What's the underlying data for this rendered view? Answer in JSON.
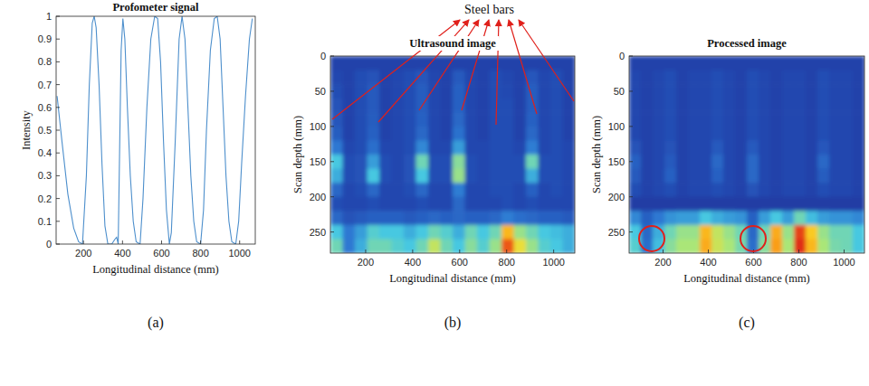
{
  "chart_data": [
    {
      "type": "line",
      "panel": "(a)",
      "title": "Profometer signal",
      "xlabel": "Longitudinal distance (mm)",
      "ylabel": "Intensity",
      "color": "#4d8fcc",
      "x": [
        65,
        90,
        120,
        150,
        175,
        195,
        215,
        230,
        245,
        255,
        265,
        280,
        295,
        310,
        325,
        345,
        360,
        370,
        378,
        385,
        393,
        402,
        412,
        425,
        440,
        455,
        470,
        490,
        505,
        525,
        545,
        565,
        580,
        595,
        610,
        625,
        640,
        650,
        670,
        690,
        705,
        720,
        735,
        750,
        765,
        780,
        800,
        815,
        830,
        850,
        870,
        885,
        900,
        915,
        930,
        945,
        960,
        980,
        995,
        1010,
        1030,
        1050,
        1065
      ],
      "values": [
        0.65,
        0.45,
        0.22,
        0.07,
        0.01,
        0,
        0.3,
        0.7,
        0.97,
        1,
        0.95,
        0.7,
        0.35,
        0.08,
        0,
        0,
        0.02,
        0.03,
        0,
        0.4,
        0.85,
        0.99,
        0.9,
        0.6,
        0.3,
        0.1,
        0.01,
        0,
        0.2,
        0.6,
        0.9,
        1,
        0.99,
        0.8,
        0.45,
        0.15,
        0,
        0.05,
        0.45,
        0.9,
        1,
        0.9,
        0.6,
        0.3,
        0.1,
        0.01,
        0,
        0.15,
        0.5,
        0.85,
        0.99,
        1,
        0.9,
        0.6,
        0.3,
        0.1,
        0.01,
        0,
        0.1,
        0.35,
        0.65,
        0.9,
        0.99
      ],
      "xlim": [
        60,
        1080
      ],
      "ylim": [
        0,
        1
      ],
      "xticks": [
        200,
        400,
        600,
        800,
        1000
      ],
      "yticks": [
        0,
        0.1,
        0.2,
        0.3,
        0.4,
        0.5,
        0.6,
        0.7,
        0.8,
        0.9,
        1
      ]
    },
    {
      "type": "heatmap",
      "panel": "(b)",
      "title": "Ultrasound image",
      "annotation": "Steel bars",
      "xlabel": "Longitudinal distance (mm)",
      "ylabel": "Scan depth (mm)",
      "xlim": [
        50,
        1090
      ],
      "ylim": [
        280,
        0
      ],
      "xticks": [
        200,
        400,
        600,
        800,
        1000
      ],
      "yticks": [
        0,
        50,
        100,
        150,
        200,
        250
      ],
      "clim": [
        0,
        1
      ],
      "cells": [
        [
          0.18,
          0.18,
          0.18,
          0.18,
          0.18,
          0.18,
          0.18,
          0.18,
          0.18,
          0.18,
          0.18,
          0.18,
          0.18,
          0.18,
          0.18,
          0.18,
          0.18,
          0.18,
          0.18,
          0.18
        ],
        [
          0.2,
          0.18,
          0.22,
          0.24,
          0.18,
          0.2,
          0.22,
          0.25,
          0.2,
          0.18,
          0.26,
          0.2,
          0.18,
          0.22,
          0.2,
          0.18,
          0.25,
          0.2,
          0.22,
          0.18
        ],
        [
          0.22,
          0.18,
          0.22,
          0.26,
          0.18,
          0.2,
          0.22,
          0.27,
          0.2,
          0.18,
          0.28,
          0.2,
          0.18,
          0.22,
          0.21,
          0.18,
          0.27,
          0.2,
          0.22,
          0.18
        ],
        [
          0.24,
          0.18,
          0.22,
          0.26,
          0.18,
          0.2,
          0.22,
          0.27,
          0.2,
          0.18,
          0.28,
          0.2,
          0.18,
          0.22,
          0.22,
          0.18,
          0.27,
          0.2,
          0.22,
          0.18
        ],
        [
          0.25,
          0.18,
          0.22,
          0.27,
          0.18,
          0.2,
          0.22,
          0.28,
          0.2,
          0.18,
          0.3,
          0.2,
          0.18,
          0.22,
          0.22,
          0.18,
          0.28,
          0.2,
          0.22,
          0.18
        ],
        [
          0.27,
          0.18,
          0.22,
          0.28,
          0.18,
          0.2,
          0.22,
          0.3,
          0.2,
          0.18,
          0.33,
          0.2,
          0.18,
          0.22,
          0.22,
          0.18,
          0.3,
          0.2,
          0.22,
          0.18
        ],
        [
          0.35,
          0.2,
          0.22,
          0.32,
          0.2,
          0.2,
          0.22,
          0.38,
          0.2,
          0.2,
          0.42,
          0.2,
          0.2,
          0.22,
          0.22,
          0.2,
          0.36,
          0.2,
          0.22,
          0.2
        ],
        [
          0.5,
          0.22,
          0.24,
          0.42,
          0.22,
          0.2,
          0.24,
          0.55,
          0.22,
          0.22,
          0.58,
          0.22,
          0.2,
          0.22,
          0.22,
          0.22,
          0.55,
          0.22,
          0.22,
          0.2
        ],
        [
          0.45,
          0.22,
          0.24,
          0.5,
          0.22,
          0.2,
          0.24,
          0.5,
          0.22,
          0.22,
          0.6,
          0.22,
          0.2,
          0.22,
          0.22,
          0.22,
          0.45,
          0.22,
          0.22,
          0.2
        ],
        [
          0.3,
          0.2,
          0.22,
          0.3,
          0.2,
          0.2,
          0.22,
          0.3,
          0.2,
          0.2,
          0.36,
          0.2,
          0.2,
          0.22,
          0.22,
          0.2,
          0.28,
          0.2,
          0.22,
          0.2
        ],
        [
          0.22,
          0.2,
          0.2,
          0.22,
          0.2,
          0.2,
          0.2,
          0.22,
          0.2,
          0.2,
          0.3,
          0.2,
          0.2,
          0.2,
          0.22,
          0.2,
          0.22,
          0.2,
          0.2,
          0.2
        ],
        [
          0.3,
          0.24,
          0.26,
          0.28,
          0.28,
          0.28,
          0.26,
          0.28,
          0.3,
          0.28,
          0.3,
          0.28,
          0.28,
          0.3,
          0.36,
          0.32,
          0.3,
          0.28,
          0.28,
          0.26
        ],
        [
          0.5,
          0.35,
          0.42,
          0.52,
          0.5,
          0.5,
          0.45,
          0.5,
          0.55,
          0.52,
          0.45,
          0.55,
          0.5,
          0.55,
          0.78,
          0.6,
          0.55,
          0.5,
          0.48,
          0.45
        ],
        [
          0.55,
          0.35,
          0.45,
          0.55,
          0.55,
          0.52,
          0.5,
          0.55,
          0.65,
          0.55,
          0.5,
          0.58,
          0.52,
          0.6,
          0.92,
          0.7,
          0.6,
          0.52,
          0.5,
          0.45
        ]
      ]
    },
    {
      "type": "heatmap",
      "panel": "(c)",
      "title": "Processed image",
      "xlabel": "Longitudinal distance (mm)",
      "ylabel": "Scan depth (mm)",
      "xlim": [
        50,
        1090
      ],
      "ylim": [
        280,
        0
      ],
      "xticks": [
        200,
        400,
        600,
        800,
        1000
      ],
      "yticks": [
        0,
        50,
        100,
        150,
        200,
        250
      ],
      "clim": [
        0,
        1
      ],
      "cells": [
        [
          0.18,
          0.18,
          0.18,
          0.18,
          0.18,
          0.18,
          0.18,
          0.18,
          0.18,
          0.18,
          0.18,
          0.18,
          0.18,
          0.18,
          0.18,
          0.18,
          0.18,
          0.18,
          0.18,
          0.18
        ],
        [
          0.2,
          0.18,
          0.2,
          0.22,
          0.18,
          0.2,
          0.2,
          0.22,
          0.2,
          0.18,
          0.22,
          0.2,
          0.18,
          0.2,
          0.2,
          0.18,
          0.22,
          0.2,
          0.2,
          0.18
        ],
        [
          0.2,
          0.18,
          0.2,
          0.22,
          0.18,
          0.2,
          0.2,
          0.22,
          0.2,
          0.18,
          0.22,
          0.2,
          0.18,
          0.2,
          0.2,
          0.18,
          0.22,
          0.2,
          0.2,
          0.18
        ],
        [
          0.2,
          0.18,
          0.2,
          0.22,
          0.18,
          0.2,
          0.2,
          0.22,
          0.2,
          0.18,
          0.22,
          0.2,
          0.18,
          0.2,
          0.2,
          0.18,
          0.22,
          0.2,
          0.2,
          0.18
        ],
        [
          0.2,
          0.18,
          0.2,
          0.22,
          0.18,
          0.2,
          0.2,
          0.22,
          0.2,
          0.18,
          0.22,
          0.2,
          0.18,
          0.2,
          0.2,
          0.18,
          0.22,
          0.2,
          0.2,
          0.18
        ],
        [
          0.2,
          0.18,
          0.2,
          0.22,
          0.18,
          0.2,
          0.2,
          0.22,
          0.2,
          0.18,
          0.22,
          0.2,
          0.18,
          0.2,
          0.2,
          0.18,
          0.22,
          0.2,
          0.2,
          0.18
        ],
        [
          0.24,
          0.18,
          0.2,
          0.24,
          0.18,
          0.2,
          0.2,
          0.26,
          0.2,
          0.18,
          0.26,
          0.2,
          0.18,
          0.2,
          0.2,
          0.18,
          0.25,
          0.2,
          0.2,
          0.18
        ],
        [
          0.28,
          0.18,
          0.2,
          0.26,
          0.18,
          0.2,
          0.2,
          0.3,
          0.2,
          0.18,
          0.3,
          0.2,
          0.18,
          0.2,
          0.2,
          0.18,
          0.3,
          0.2,
          0.2,
          0.18
        ],
        [
          0.26,
          0.18,
          0.2,
          0.28,
          0.18,
          0.2,
          0.2,
          0.28,
          0.2,
          0.18,
          0.3,
          0.2,
          0.18,
          0.2,
          0.2,
          0.18,
          0.27,
          0.2,
          0.2,
          0.18
        ],
        [
          0.22,
          0.18,
          0.2,
          0.22,
          0.18,
          0.2,
          0.2,
          0.22,
          0.2,
          0.18,
          0.24,
          0.2,
          0.18,
          0.2,
          0.2,
          0.18,
          0.22,
          0.2,
          0.2,
          0.18
        ],
        [
          0.16,
          0.16,
          0.16,
          0.16,
          0.16,
          0.16,
          0.16,
          0.16,
          0.16,
          0.16,
          0.16,
          0.16,
          0.16,
          0.16,
          0.16,
          0.16,
          0.16,
          0.16,
          0.16,
          0.16
        ],
        [
          0.38,
          0.28,
          0.35,
          0.4,
          0.42,
          0.42,
          0.5,
          0.45,
          0.42,
          0.4,
          0.28,
          0.42,
          0.5,
          0.42,
          0.55,
          0.48,
          0.42,
          0.4,
          0.4,
          0.38
        ],
        [
          0.5,
          0.3,
          0.45,
          0.55,
          0.6,
          0.6,
          0.78,
          0.65,
          0.6,
          0.55,
          0.3,
          0.55,
          0.8,
          0.6,
          0.95,
          0.75,
          0.6,
          0.55,
          0.55,
          0.5
        ],
        [
          0.52,
          0.32,
          0.48,
          0.58,
          0.62,
          0.62,
          0.8,
          0.66,
          0.62,
          0.56,
          0.32,
          0.58,
          0.82,
          0.62,
          0.98,
          0.78,
          0.62,
          0.56,
          0.55,
          0.5
        ]
      ]
    }
  ]
}
